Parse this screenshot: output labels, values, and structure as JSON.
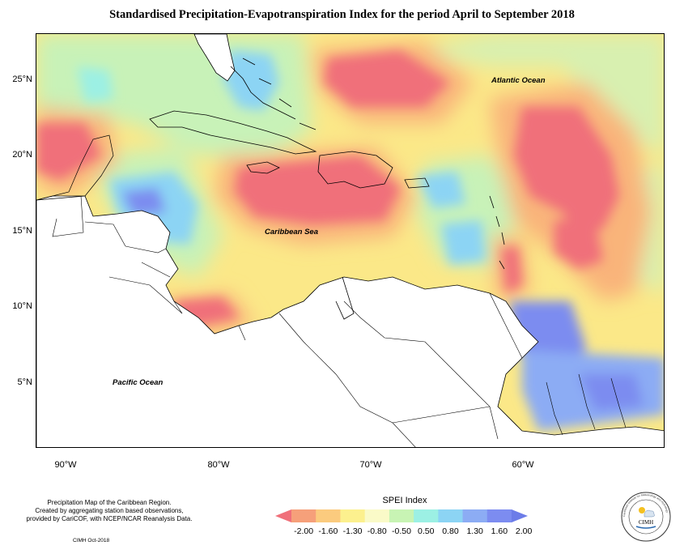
{
  "title": "Standardised Precipitation-Evapotranspiration Index for the period April to September 2018",
  "map": {
    "latitude_labels": [
      "25°N",
      "20°N",
      "15°N",
      "10°N",
      "5°N"
    ],
    "longitude_labels": [
      "90°W",
      "80°W",
      "70°W",
      "60°W"
    ],
    "places": {
      "atlantic": "Atlantic Ocean",
      "caribbean": "Caribbean Sea",
      "pacific": "Pacific Ocean"
    }
  },
  "legend": {
    "title": "SPEI Index",
    "ticks": [
      "-2.00",
      "-1.60",
      "-1.30",
      "-0.80",
      "-0.50",
      "0.50",
      "0.80",
      "1.30",
      "1.60",
      "2.00"
    ],
    "colors": [
      "#f0707a",
      "#f6a07a",
      "#fbcb7e",
      "#fcf08e",
      "#fafac8",
      "#c8f4b4",
      "#9cf0e4",
      "#8cd4f4",
      "#8cacf4",
      "#7c8cf0",
      "#6c7ce8"
    ]
  },
  "notes": {
    "line1": "Precipitation Map of the Caribbean Region.",
    "line2": "Created by aggregating station based observations,",
    "line3": "provided by CariCOF, with NCEP/NCAR Reanalysis Data.",
    "credit": "CIMH Oct-2018"
  },
  "logo": {
    "text": "CIMH",
    "ring_text": "Caribbean Institute for Meteorology and Hydrology"
  }
}
